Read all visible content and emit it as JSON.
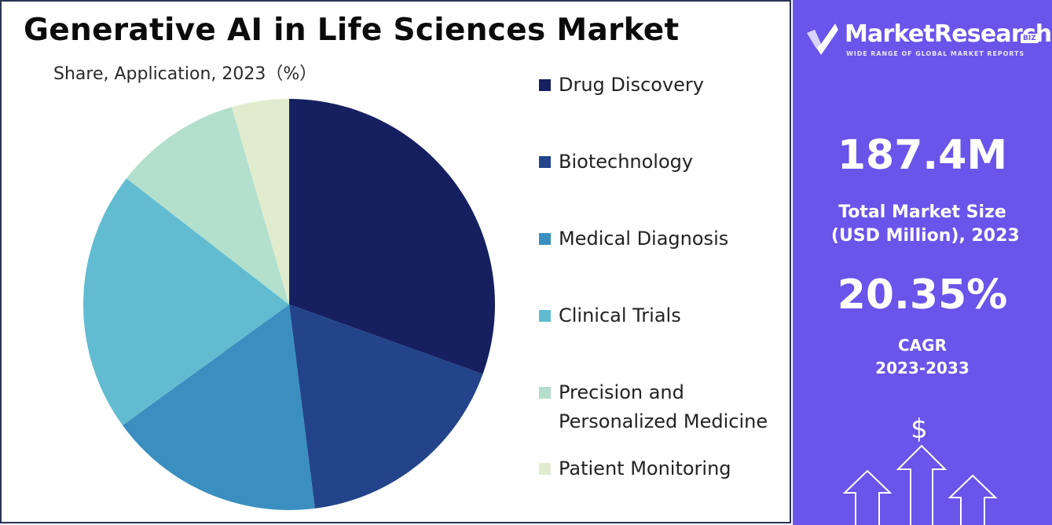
{
  "chart_data": {
    "type": "pie",
    "title": "Generative AI in Life Sciences Market",
    "subtitle": "Share, Application, 2023（%）",
    "categories": [
      "Drug Discovery",
      "Biotechnology",
      "Medical Diagnosis",
      "Clinical Trials",
      "Precision and Personalized Medicine",
      "Patient Monitoring"
    ],
    "values": [
      30.5,
      17.5,
      17.0,
      20.5,
      10.0,
      4.5
    ],
    "colors": [
      "#162061",
      "#23448a",
      "#3a8fc0",
      "#61bcd1",
      "#b3dfcd",
      "#e1ecce"
    ],
    "legend_position": "right"
  },
  "legend": {
    "items": [
      {
        "label": "Drug Discovery",
        "color": "#162061"
      },
      {
        "label": "Biotechnology",
        "color": "#23448a"
      },
      {
        "label": "Medical Diagnosis",
        "color": "#3a8fc0"
      },
      {
        "label": "Clinical Trials",
        "color": "#61bcd1"
      },
      {
        "label": "Precision and Personalized Medicine",
        "color": "#b3dfcd"
      },
      {
        "label": "Patient Monitoring",
        "color": "#e1ecce"
      }
    ]
  },
  "sidebar": {
    "brand_name": "MarketResearch",
    "brand_badge": "BIZ",
    "brand_tagline": "WIDE RANGE OF GLOBAL MARKET REPORTS",
    "market_size_value": "187.4M",
    "market_size_label_line1": "Total Market Size",
    "market_size_label_line2": " (USD Million), 2023",
    "cagr_value": "20.35%",
    "cagr_label_line1": "CAGR",
    "cagr_label_line2": "2023-2033",
    "currency_symbol": "$",
    "background_color": "#6a54ea"
  }
}
